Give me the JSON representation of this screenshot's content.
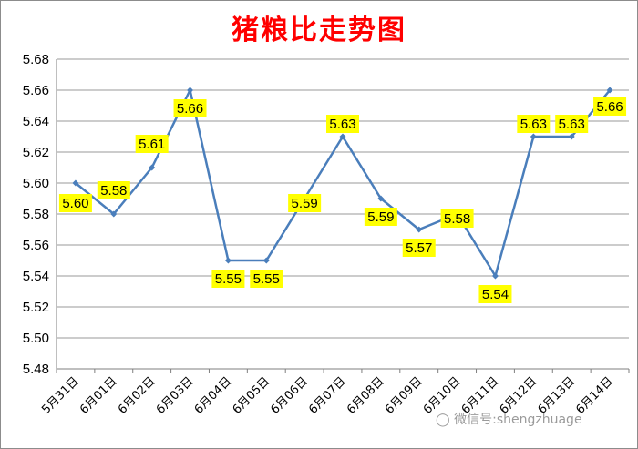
{
  "chart_data": {
    "type": "line",
    "title": "猪粮比走势图",
    "categories": [
      "5月31日",
      "6月01日",
      "6月02日",
      "6月03日",
      "6月04日",
      "6月05日",
      "6月06日",
      "6月07日",
      "6月08日",
      "6月09日",
      "6月10日",
      "6月11日",
      "6月12日",
      "6月13日",
      "6月14日"
    ],
    "series": [
      {
        "values": [
          5.6,
          5.58,
          5.61,
          5.66,
          5.55,
          5.55,
          5.59,
          5.63,
          5.59,
          5.57,
          5.58,
          5.54,
          5.63,
          5.63,
          5.66
        ]
      }
    ],
    "data_labels": [
      "5.60",
      "5.58",
      "5.61",
      "5.66",
      "5.55",
      "5.55",
      "5.59",
      "5.63",
      "5.59",
      "5.57",
      "5.58",
      "5.54",
      "5.63",
      "5.63",
      "5.66"
    ],
    "yticks": [
      "5.48",
      "5.50",
      "5.52",
      "5.54",
      "5.56",
      "5.58",
      "5.60",
      "5.62",
      "5.64",
      "5.66",
      "5.68"
    ],
    "ylim": [
      5.48,
      5.68
    ],
    "grid": true,
    "legend": "none",
    "colors": {
      "line": "#4a7ebb",
      "label_bg": "#ffff00",
      "title": "#ff0000"
    }
  },
  "watermark": {
    "text": "微信号:shengzhuage",
    "icon": "wechat-icon"
  }
}
